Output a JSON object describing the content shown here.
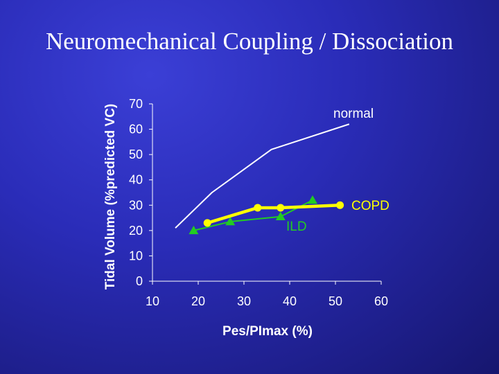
{
  "slide": {
    "title": "Neuromechanical Coupling / Dissociation"
  },
  "chart_data": {
    "type": "line",
    "title": "",
    "xlabel": "Pes/PImax (%)",
    "ylabel": "Tidal Volume (%predicted VC)",
    "xlim": [
      10,
      60
    ],
    "ylim": [
      0,
      70
    ],
    "xticks": [
      "10",
      "20",
      "30",
      "40",
      "50",
      "60"
    ],
    "yticks": [
      "0",
      "10",
      "20",
      "30",
      "40",
      "50",
      "60",
      "70"
    ],
    "grid": false,
    "colors": {
      "normal": "#ffffff",
      "copd": "#ffff00",
      "ild": "#22cc22"
    },
    "series": [
      {
        "name": "normal",
        "marker": "none",
        "x": [
          15,
          23,
          36,
          53
        ],
        "y": [
          21,
          35,
          52,
          62
        ]
      },
      {
        "name": "COPD",
        "marker": "circle",
        "x": [
          22,
          33,
          38,
          51
        ],
        "y": [
          23,
          29,
          29,
          30
        ]
      },
      {
        "name": "ILD",
        "marker": "triangle",
        "x": [
          19,
          27,
          38,
          45
        ],
        "y": [
          20,
          23.5,
          25.5,
          32
        ]
      }
    ]
  }
}
